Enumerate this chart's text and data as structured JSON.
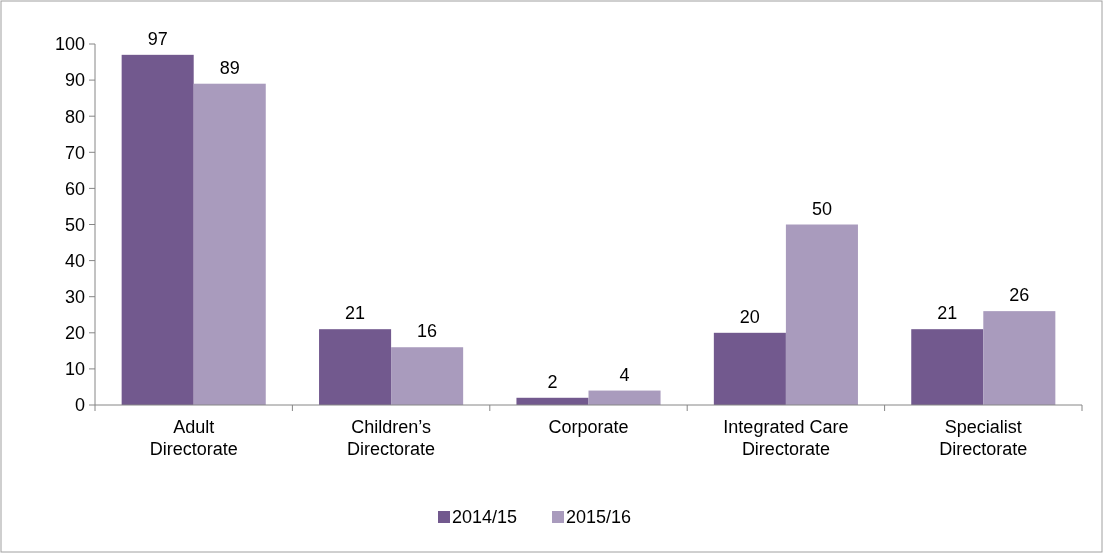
{
  "chart_data": {
    "type": "bar",
    "categories": [
      "Adult Directorate",
      "Children’s Directorate",
      "Corporate",
      "Integrated Care Directorate",
      "Specialist Directorate"
    ],
    "series": [
      {
        "name": "2014/15",
        "color": "#72598e",
        "values": [
          97,
          21,
          2,
          20,
          21
        ]
      },
      {
        "name": "2015/16",
        "color": "#a99bbd",
        "values": [
          89,
          16,
          4,
          50,
          26
        ]
      }
    ],
    "ylim": [
      0,
      100
    ],
    "yticks": [
      0,
      10,
      20,
      30,
      40,
      50,
      60,
      70,
      80,
      90,
      100
    ],
    "grid": false,
    "legend": "bottom",
    "data_labels": true
  }
}
